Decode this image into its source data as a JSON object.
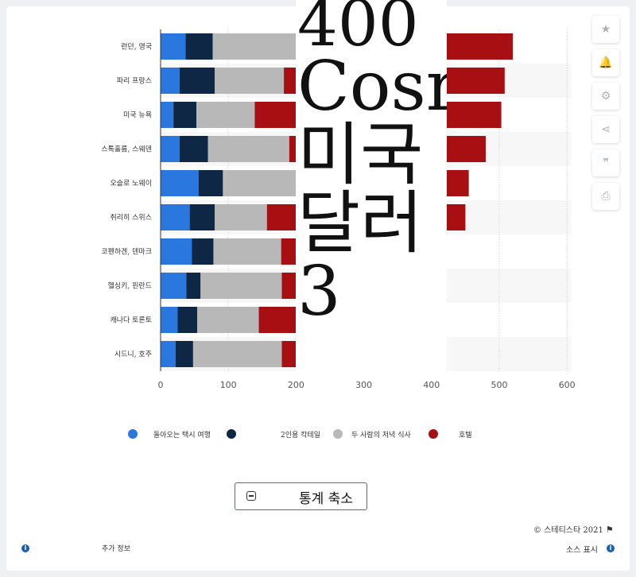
{
  "chart_data": {
    "type": "bar",
    "orientation": "horizontal",
    "stacked": true,
    "categories": [
      "런던, 영국",
      "파리 프랑스",
      "미국 뉴욕",
      "스톡홀름, 스웨덴",
      "오슬로 노웨이",
      "취리히 스위스",
      "코펜하겐, 덴마크",
      "헬싱키, 핀란드",
      "캐나다 토론토",
      "시드니, 호주"
    ],
    "series": [
      {
        "name": "돌아오는 택시 여행",
        "color": "#2a77e0",
        "values": [
          37,
          28,
          19,
          28,
          56,
          43,
          46,
          38,
          25,
          22
        ]
      },
      {
        "name": "",
        "color": "#0e2744",
        "values": [
          40,
          52,
          34,
          42,
          36,
          37,
          32,
          21,
          29,
          26
        ]
      },
      {
        "name": "2인용 칵테일",
        "color": "#b8b8b8",
        "values": [
          130,
          102,
          86,
          120,
          110,
          77,
          100,
          120,
          91,
          131
        ]
      },
      {
        "name": "두 사람의 저녁 식사",
        "color": "#a80f12",
        "values": [
          313,
          326,
          364,
          290,
          253,
          293,
          221,
          202,
          253,
          208
        ]
      }
    ],
    "legend_extra": [
      "호텔"
    ],
    "xlim": [
      0,
      600
    ],
    "xticks": [
      "0",
      "100",
      "200",
      "300",
      "400",
      "500",
      "600"
    ],
    "grid": true,
    "legend_position": "bottom",
    "highlighted_category": "헬싱키, 핀란드"
  },
  "overlay_text": [
    "400",
    "Cosr",
    "미국",
    "달러",
    "3"
  ],
  "toolbar": {
    "icons": [
      "star-icon",
      "bell-icon",
      "gear-icon",
      "share-icon",
      "quote-icon",
      "print-icon"
    ]
  },
  "collapse_button": {
    "label": "통계 축소"
  },
  "footer": {
    "copyright": "©  스테티스타 2021",
    "more_info": "추가 정보",
    "show_source": "소스 표시"
  }
}
